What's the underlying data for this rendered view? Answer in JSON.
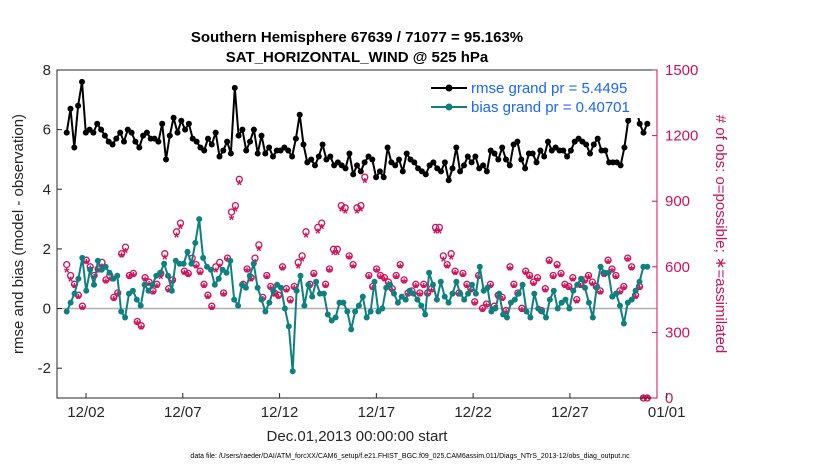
{
  "chart_data": {
    "type": "line",
    "title": "Southern Hemisphere 67639 / 71077 = 95.163%",
    "subtitle": "SAT_HORIZONTAL_WIND @ 525 hPa",
    "xlabel": "Dec.01,2013 00:00:00 start",
    "ylabel_left": "rmse and bias (model - observation)",
    "ylabel_right": "# of obs: o=possible; ∗=assimilated",
    "footer": "data file: /Users/raeder/DAI/ATM_forcXX/CAM6_setup/f.e21.FHIST_BGC.f09_025.CAM6assim.011/Diags_NTrS_2013-12/obs_diag_output.nc",
    "x_day_range": [
      0.5,
      31.5
    ],
    "ylim_left": [
      -3,
      8
    ],
    "ylim_right": [
      0,
      1500
    ],
    "yticks_left": [
      "-2",
      "0",
      "2",
      "4",
      "6",
      "8"
    ],
    "yticks_right": [
      "0",
      "300",
      "600",
      "900",
      "1200",
      "1500"
    ],
    "xticks": [
      {
        "day": 2,
        "label": "12/02"
      },
      {
        "day": 7,
        "label": "12/07"
      },
      {
        "day": 12,
        "label": "12/12"
      },
      {
        "day": 17,
        "label": "12/17"
      },
      {
        "day": 22,
        "label": "12/22"
      },
      {
        "day": 27,
        "label": "12/27"
      },
      {
        "day": 32,
        "label": "01/01"
      }
    ],
    "legend_position": "top-right",
    "colors": {
      "rmse": "#000000",
      "bias": "#0f8080",
      "obs": "#d0105a",
      "zero_line": "#b0b0b0"
    },
    "series": [
      {
        "name": "rmse grand pr = 5.4495",
        "axis": "left",
        "values": [
          5.9,
          6.7,
          5.4,
          6.8,
          7.6,
          5.9,
          6.0,
          5.9,
          6.2,
          6.0,
          5.8,
          5.6,
          5.5,
          5.7,
          5.9,
          5.6,
          6.0,
          5.9,
          5.6,
          5.4,
          5.8,
          5.9,
          5.7,
          5.7,
          5.6,
          6.2,
          5.0,
          5.8,
          6.4,
          5.9,
          6.3,
          6.0,
          6.2,
          5.7,
          5.6,
          5.4,
          5.3,
          5.7,
          5.5,
          5.9,
          5.1,
          5.3,
          5.6,
          5.2,
          7.4,
          5.8,
          6.0,
          5.3,
          5.6,
          6.0,
          5.2,
          5.8,
          5.2,
          5.4,
          5.1,
          5.3,
          5.3,
          5.4,
          5.3,
          5.1,
          5.7,
          6.5,
          5.5,
          4.9,
          5.0,
          4.8,
          5.1,
          5.5,
          5.0,
          5.1,
          4.8,
          4.9,
          4.8,
          4.7,
          5.2,
          4.5,
          4.8,
          4.6,
          4.9,
          5.1,
          5.0,
          4.4,
          4.6,
          4.4,
          5.4,
          4.9,
          4.8,
          5.0,
          4.6,
          5.2,
          5.0,
          4.9,
          4.7,
          4.6,
          4.5,
          4.8,
          4.9,
          4.7,
          4.6,
          4.9,
          4.3,
          4.7,
          5.4,
          4.6,
          4.8,
          5.1,
          4.9,
          5.1,
          4.7,
          4.8,
          4.6,
          5.3,
          5.2,
          5.0,
          5.4,
          5.0,
          4.8,
          5.5,
          5.6,
          5.0,
          4.7,
          5.2,
          5.2,
          4.9,
          5.3,
          5.1,
          5.6,
          5.3,
          5.4,
          5.3,
          5.3,
          5.1,
          5.3,
          5.6,
          5.7,
          5.6,
          5.5,
          5.2,
          5.5,
          5.7,
          5.3,
          5.3,
          4.9,
          4.9,
          4.9,
          4.8,
          5.4,
          6.3,
          6.5,
          6.8,
          6.2,
          5.9,
          6.2
        ]
      },
      {
        "name": "bias grand pr = 0.40701",
        "axis": "left",
        "values": [
          -0.1,
          0.2,
          0.5,
          1.0,
          1.7,
          0.6,
          1.3,
          0.8,
          1.6,
          1.3,
          1.4,
          1.2,
          1.0,
          1.1,
          -0.1,
          -0.3,
          0.5,
          0.6,
          0.3,
          0.1,
          0.8,
          0.6,
          0.8,
          1.1,
          1.2,
          1.5,
          1.1,
          0.6,
          1.6,
          1.5,
          1.5,
          1.9,
          1.5,
          2.2,
          3.0,
          1.7,
          1.4,
          1.3,
          0.8,
          1.0,
          1.3,
          1.2,
          1.6,
          0.3,
          0.1,
          0.8,
          0.7,
          1.1,
          1.5,
          0.7,
          0.3,
          -0.1,
          0.2,
          0.6,
          0.8,
          0.7,
          0.0,
          -0.6,
          -2.1,
          0.6,
          1.1,
          0.1,
          0.8,
          0.4,
          0.9,
          0.5,
          0.5,
          -0.2,
          -0.4,
          -0.3,
          0.2,
          0.2,
          -0.1,
          -0.7,
          -0.1,
          0.1,
          0.4,
          -0.3,
          -0.1,
          0.9,
          -0.1,
          0.0,
          0.7,
          0.8,
          0.5,
          0.2,
          0.4,
          0.3,
          0.6,
          0.5,
          0.3,
          0.1,
          -0.2,
          1.2,
          0.8,
          0.3,
          0.9,
          0.4,
          0.2,
          0.5,
          0.9,
          0.5,
          0.3,
          0.5,
          0.8,
          0.5,
          1.4,
          0.6,
          0.7,
          -0.1,
          0.0,
          0.5,
          -0.2,
          -0.3,
          0.2,
          0.3,
          0.5,
          0.8,
          -0.1,
          -0.3,
          0.5,
          0.0,
          -0.1,
          -0.3,
          0.3,
          0.6,
          0.0,
          0.2,
          0.3,
          0.0,
          0.6,
          0.8,
          1.0,
          0.7,
          0.2,
          -0.3,
          0.7,
          1.4,
          1.2,
          1.2,
          0.4,
          0.5,
          0.1,
          -0.5,
          0.2,
          0.3,
          0.6,
          0.9,
          1.4,
          1.4
        ]
      },
      {
        "name": "possible",
        "axis": "right",
        "marker": "o",
        "values": [
          610,
          560,
          520,
          470,
          420,
          630,
          600,
          560,
          590,
          620,
          540,
          560,
          460,
          480,
          660,
          690,
          560,
          570,
          350,
          330,
          550,
          530,
          490,
          520,
          570,
          660,
          500,
          540,
          760,
          800,
          580,
          570,
          640,
          610,
          580,
          520,
          470,
          420,
          600,
          620,
          480,
          640,
          850,
          880,
          1000,
          520,
          590,
          550,
          640,
          700,
          460,
          560,
          510,
          480,
          470,
          600,
          500,
          450,
          510,
          620,
          650,
          760,
          520,
          570,
          780,
          800,
          520,
          590,
          680,
          680,
          880,
          870,
          650,
          610,
          870,
          880,
          1010,
          560,
          510,
          590,
          560,
          550,
          530,
          500,
          560,
          610,
          540,
          480,
          490,
          520,
          480,
          520,
          480,
          500,
          780,
          780,
          650,
          610,
          660,
          580,
          480,
          570,
          520,
          500,
          440,
          560,
          410,
          430,
          520,
          420,
          470,
          460,
          400,
          600,
          520,
          480,
          410,
          580,
          560,
          530,
          550,
          400,
          500,
          630,
          560,
          610,
          570,
          520,
          510,
          550,
          450,
          520,
          540,
          560,
          530,
          510,
          490,
          570,
          630,
          590,
          560,
          490,
          510,
          640,
          600,
          470,
          510,
          0,
          0
        ]
      },
      {
        "name": "assimilated",
        "axis": "right",
        "marker": "*",
        "values": [
          580,
          540,
          510,
          460,
          410,
          620,
          590,
          550,
          580,
          600,
          530,
          540,
          450,
          470,
          650,
          670,
          550,
          560,
          340,
          320,
          540,
          520,
          480,
          510,
          550,
          640,
          490,
          530,
          740,
          780,
          570,
          560,
          620,
          600,
          570,
          510,
          460,
          410,
          580,
          600,
          470,
          630,
          820,
          860,
          980,
          510,
          580,
          540,
          620,
          680,
          450,
          550,
          500,
          470,
          460,
          590,
          490,
          440,
          500,
          600,
          630,
          740,
          510,
          560,
          760,
          780,
          510,
          580,
          660,
          660,
          860,
          850,
          640,
          600,
          850,
          860,
          990,
          550,
          500,
          580,
          550,
          540,
          520,
          490,
          550,
          600,
          530,
          470,
          480,
          510,
          470,
          510,
          470,
          490,
          760,
          760,
          630,
          600,
          640,
          570,
          470,
          560,
          510,
          490,
          430,
          550,
          400,
          420,
          510,
          410,
          460,
          450,
          390,
          590,
          510,
          470,
          400,
          570,
          550,
          520,
          540,
          390,
          490,
          620,
          550,
          600,
          560,
          510,
          500,
          540,
          440,
          510,
          530,
          550,
          520,
          500,
          480,
          560,
          620,
          580,
          550,
          480,
          500,
          630,
          590,
          460,
          500,
          0,
          0
        ]
      }
    ]
  }
}
